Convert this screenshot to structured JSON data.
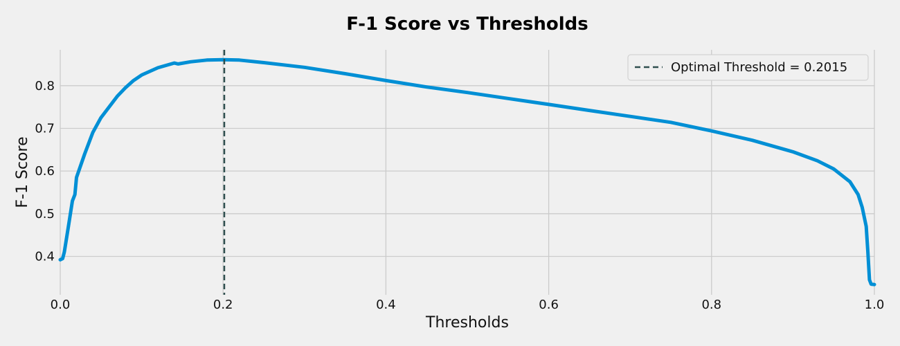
{
  "chart_data": {
    "type": "line",
    "title": "F-1 Score vs Thresholds",
    "xlabel": "Thresholds",
    "ylabel": "F-1 Score",
    "xlim": [
      0,
      1
    ],
    "ylim": [
      0.31,
      0.884
    ],
    "xticks": [
      0,
      0.2,
      0.4,
      0.6,
      0.8,
      1
    ],
    "xtick_labels": [
      "0.0",
      "0.2",
      "0.4",
      "0.6",
      "0.8",
      "1.0"
    ],
    "yticks": [
      0.4,
      0.5,
      0.6,
      0.7,
      0.8
    ],
    "ytick_labels": [
      "0.4",
      "0.5",
      "0.6",
      "0.7",
      "0.8"
    ],
    "grid": true,
    "legend_position": "top-right",
    "series": [
      {
        "color": "#008fd5",
        "x": [
          0,
          0.003,
          0.005,
          0.01,
          0.015,
          0.018,
          0.02,
          0.03,
          0.04,
          0.05,
          0.06,
          0.07,
          0.08,
          0.09,
          0.1,
          0.12,
          0.14,
          0.145,
          0.16,
          0.18,
          0.2,
          0.22,
          0.25,
          0.3,
          0.35,
          0.4,
          0.45,
          0.5,
          0.55,
          0.6,
          0.65,
          0.7,
          0.75,
          0.8,
          0.85,
          0.9,
          0.93,
          0.95,
          0.97,
          0.98,
          0.985,
          0.99,
          0.992,
          0.994,
          0.996,
          1.0
        ],
        "y": [
          0.392,
          0.395,
          0.41,
          0.47,
          0.53,
          0.545,
          0.585,
          0.64,
          0.69,
          0.725,
          0.75,
          0.775,
          0.795,
          0.812,
          0.825,
          0.842,
          0.853,
          0.851,
          0.856,
          0.86,
          0.861,
          0.86,
          0.854,
          0.843,
          0.828,
          0.812,
          0.797,
          0.784,
          0.77,
          0.756,
          0.742,
          0.728,
          0.714,
          0.694,
          0.672,
          0.645,
          0.624,
          0.605,
          0.575,
          0.545,
          0.515,
          0.47,
          0.41,
          0.345,
          0.335,
          0.334
        ]
      }
    ],
    "vline": {
      "x": 0.2015,
      "style": "dashed",
      "color": "#2f4f4f",
      "label": "Optimal Threshold = 0.2015"
    }
  }
}
